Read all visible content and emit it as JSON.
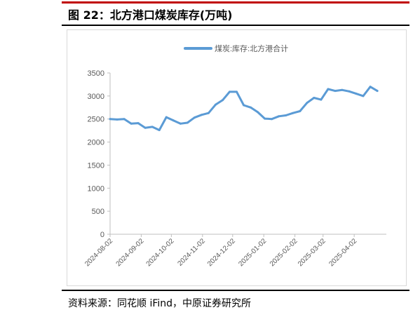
{
  "figure": {
    "title": "图 22：北方港口煤炭库存(万吨)",
    "source": "资料来源：同花顺 iFind，中原证券研究所"
  },
  "colors": {
    "accent_rule": "#c00000",
    "series_line": "#5b9bd5",
    "axis": "#bfbfbf",
    "tick_text": "#595959"
  },
  "chart_data": {
    "type": "line",
    "title": "",
    "xlabel": "",
    "ylabel": "",
    "ylim": [
      0,
      3500
    ],
    "yticks": [
      0,
      500,
      1000,
      1500,
      2000,
      2500,
      3000,
      3500
    ],
    "xticks": [
      "2024-08-02",
      "2024-09-02",
      "2024-10-02",
      "2024-11-02",
      "2024-12-02",
      "2025-01-02",
      "2025-02-02",
      "2025-03-02",
      "2025-04-02"
    ],
    "legend": "top-center",
    "grid": false,
    "series": [
      {
        "name": "煤炭:库存:北方港合计",
        "x": [
          "2024-08-02",
          "2024-08-09",
          "2024-08-16",
          "2024-08-23",
          "2024-08-30",
          "2024-09-06",
          "2024-09-13",
          "2024-09-20",
          "2024-09-27",
          "2024-10-04",
          "2024-10-11",
          "2024-10-18",
          "2024-10-25",
          "2024-11-01",
          "2024-11-08",
          "2024-11-15",
          "2024-11-22",
          "2024-11-29",
          "2024-12-06",
          "2024-12-13",
          "2024-12-20",
          "2024-12-27",
          "2025-01-03",
          "2025-01-10",
          "2025-01-17",
          "2025-01-24",
          "2025-01-31",
          "2025-02-07",
          "2025-02-14",
          "2025-02-21",
          "2025-02-28",
          "2025-03-07",
          "2025-03-14",
          "2025-03-21",
          "2025-03-28",
          "2025-04-04",
          "2025-04-11",
          "2025-04-18",
          "2025-04-25"
        ],
        "values": [
          2500,
          2490,
          2500,
          2400,
          2410,
          2310,
          2330,
          2260,
          2540,
          2470,
          2400,
          2420,
          2530,
          2590,
          2630,
          2810,
          2910,
          3090,
          3090,
          2800,
          2750,
          2650,
          2510,
          2500,
          2560,
          2580,
          2630,
          2670,
          2850,
          2960,
          2920,
          3150,
          3110,
          3130,
          3100,
          3050,
          3000,
          3200,
          3110
        ]
      }
    ]
  }
}
